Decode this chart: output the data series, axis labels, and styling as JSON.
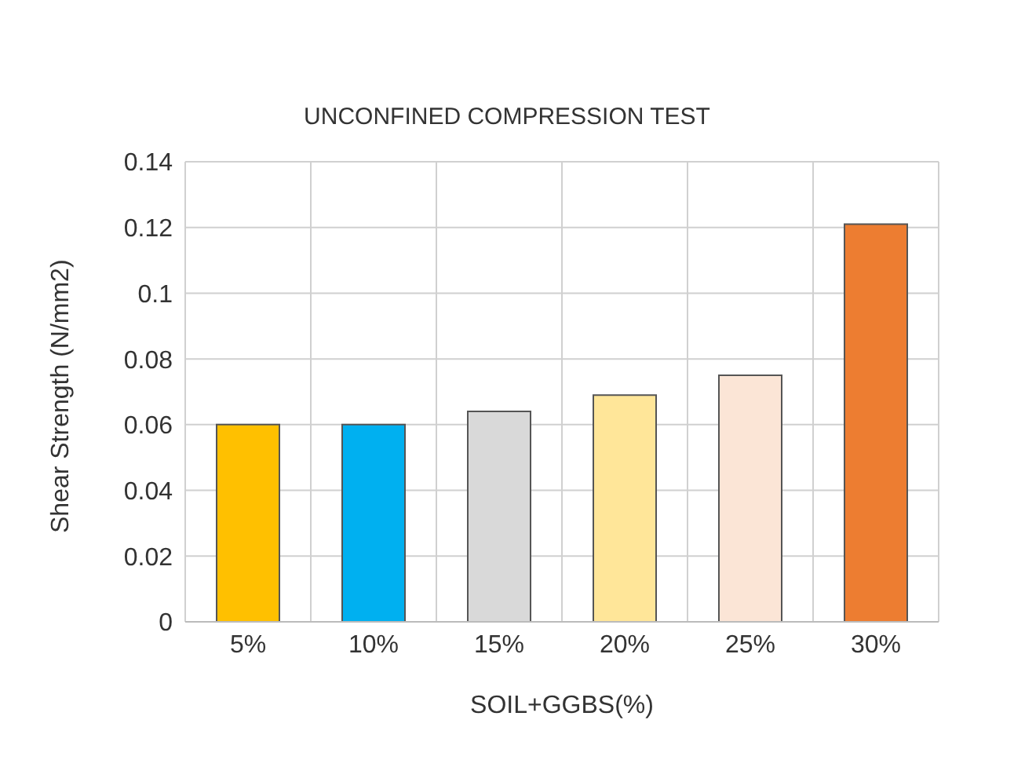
{
  "chart_data": {
    "type": "bar",
    "title": "UNCONFINED COMPRESSION TEST",
    "xlabel": "SOIL+GGBS(%)",
    "ylabel": "Shear Strength (N/mm2)",
    "categories": [
      "5%",
      "10%",
      "15%",
      "20%",
      "25%",
      "30%"
    ],
    "values": [
      0.06,
      0.06,
      0.064,
      0.069,
      0.075,
      0.121
    ],
    "colors": [
      "#ffc000",
      "#00b0f0",
      "#d9d9d9",
      "#ffe699",
      "#fbe5d6",
      "#ed7d31"
    ],
    "ylim": [
      0,
      0.14
    ],
    "yticks": [
      0,
      0.02,
      0.04,
      0.06,
      0.08,
      0.1,
      0.12,
      0.14
    ],
    "grid": true
  }
}
